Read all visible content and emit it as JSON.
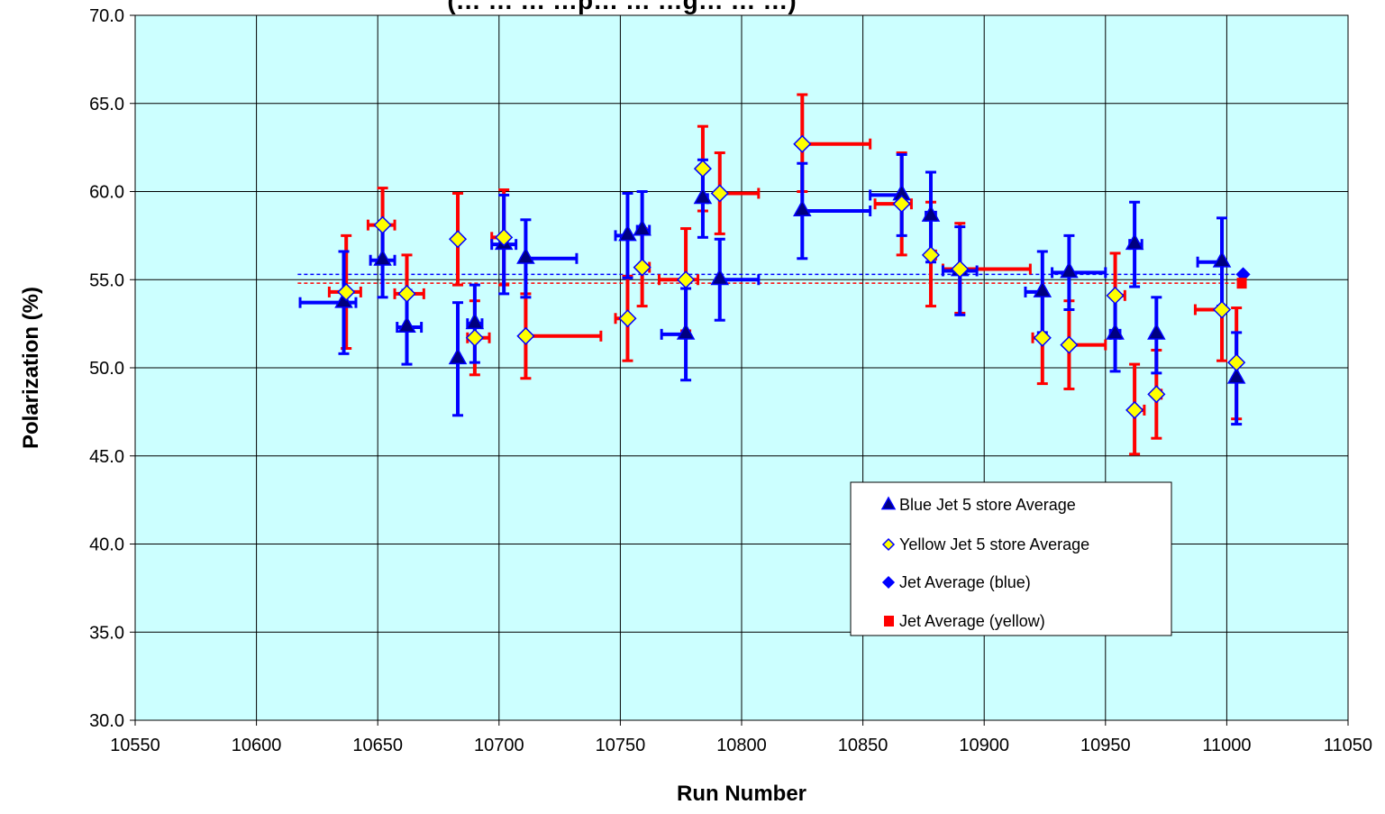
{
  "chart_data": {
    "type": "scatter",
    "title": "(… … … …p… … …g… … …)",
    "xlabel": "Run Number",
    "ylabel": "Polarization (%)",
    "xlim": [
      10550,
      11050
    ],
    "ylim": [
      30.0,
      70.0
    ],
    "x_ticks": [
      "10550",
      "10600",
      "10650",
      "10700",
      "10750",
      "10800",
      "10850",
      "10900",
      "10950",
      "11000",
      "11050"
    ],
    "y_ticks": [
      "30.0",
      "35.0",
      "40.0",
      "45.0",
      "50.0",
      "55.0",
      "60.0",
      "65.0",
      "70.0"
    ],
    "grid": true,
    "plot_background": "#ccffff",
    "legend_position": "lower-right",
    "colors": {
      "blue": "#0000ff",
      "red": "#ff0000",
      "marker_blue_fill": "#000080",
      "marker_yellow_fill": "#ffff00"
    },
    "series": [
      {
        "name": "Blue Jet 5 store Average",
        "marker": "triangle",
        "color": "#0000ff",
        "points": [
          {
            "x": 10636,
            "y": 53.7,
            "xerr": [
              10618,
              10641
            ],
            "yerr": [
              50.8,
              56.6
            ]
          },
          {
            "x": 10652,
            "y": 56.1,
            "xerr": [
              10647,
              10657
            ],
            "yerr": [
              54.0,
              58.2
            ]
          },
          {
            "x": 10662,
            "y": 52.3,
            "xerr": [
              10658,
              10668
            ],
            "yerr": [
              50.2,
              54.4
            ]
          },
          {
            "x": 10683,
            "y": 50.5,
            "xerr": [
              10683,
              10683
            ],
            "yerr": [
              47.3,
              53.7
            ]
          },
          {
            "x": 10690,
            "y": 52.5,
            "xerr": [
              10687,
              10693
            ],
            "yerr": [
              50.3,
              54.7
            ]
          },
          {
            "x": 10702,
            "y": 57.0,
            "xerr": [
              10697,
              10707
            ],
            "yerr": [
              54.2,
              59.8
            ]
          },
          {
            "x": 10711,
            "y": 56.2,
            "xerr": [
              10711,
              10732
            ],
            "yerr": [
              54.0,
              58.4
            ]
          },
          {
            "x": 10753,
            "y": 57.5,
            "xerr": [
              10748,
              10753
            ],
            "yerr": [
              55.1,
              59.9
            ]
          },
          {
            "x": 10759,
            "y": 57.8,
            "xerr": [
              10757,
              10762
            ],
            "yerr": [
              55.6,
              60.0
            ]
          },
          {
            "x": 10777,
            "y": 51.9,
            "xerr": [
              10767,
              10777
            ],
            "yerr": [
              49.3,
              54.5
            ]
          },
          {
            "x": 10784,
            "y": 59.6,
            "xerr": [
              10784,
              10786
            ],
            "yerr": [
              57.4,
              61.8
            ]
          },
          {
            "x": 10791,
            "y": 55.0,
            "xerr": [
              10791,
              10807
            ],
            "yerr": [
              52.7,
              57.3
            ]
          },
          {
            "x": 10825,
            "y": 58.9,
            "xerr": [
              10825,
              10853
            ],
            "yerr": [
              56.2,
              61.6
            ]
          },
          {
            "x": 10866,
            "y": 59.8,
            "xerr": [
              10853,
              10866
            ],
            "yerr": [
              57.5,
              62.1
            ]
          },
          {
            "x": 10878,
            "y": 58.6,
            "xerr": [
              10876,
              10880
            ],
            "yerr": [
              56.0,
              61.1
            ]
          },
          {
            "x": 10890,
            "y": 55.5,
            "xerr": [
              10883,
              10897
            ],
            "yerr": [
              53.0,
              58.0
            ]
          },
          {
            "x": 10924,
            "y": 54.3,
            "xerr": [
              10917,
              10924
            ],
            "yerr": [
              52.0,
              56.6
            ]
          },
          {
            "x": 10935,
            "y": 55.4,
            "xerr": [
              10928,
              10950
            ],
            "yerr": [
              53.3,
              57.5
            ]
          },
          {
            "x": 10954,
            "y": 51.9,
            "xerr": [
              10952,
              10956
            ],
            "yerr": [
              49.8,
              54.0
            ]
          },
          {
            "x": 10962,
            "y": 57.0,
            "xerr": [
              10960,
              10965
            ],
            "yerr": [
              54.6,
              59.4
            ]
          },
          {
            "x": 10971,
            "y": 51.9,
            "xerr": [
              10971,
              10971
            ],
            "yerr": [
              49.7,
              54.0
            ]
          },
          {
            "x": 10998,
            "y": 56.0,
            "xerr": [
              10988,
              10998
            ],
            "yerr": [
              53.5,
              58.5
            ]
          },
          {
            "x": 11004,
            "y": 49.4,
            "xerr": [
              11004,
              11004
            ],
            "yerr": [
              46.8,
              52.0
            ]
          }
        ]
      },
      {
        "name": "Yellow Jet 5 store Average",
        "marker": "diamond",
        "color": "#ff0000",
        "points": [
          {
            "x": 10637,
            "y": 54.3,
            "xerr": [
              10630,
              10643
            ],
            "yerr": [
              51.1,
              57.5
            ]
          },
          {
            "x": 10652,
            "y": 58.1,
            "xerr": [
              10646,
              10657
            ],
            "yerr": [
              56.0,
              60.2
            ]
          },
          {
            "x": 10662,
            "y": 54.2,
            "xerr": [
              10657,
              10669
            ],
            "yerr": [
              52.1,
              56.4
            ]
          },
          {
            "x": 10683,
            "y": 57.3,
            "xerr": [
              10683,
              10683
            ],
            "yerr": [
              54.7,
              59.9
            ]
          },
          {
            "x": 10690,
            "y": 51.7,
            "xerr": [
              10687,
              10696
            ],
            "yerr": [
              49.6,
              53.8
            ]
          },
          {
            "x": 10702,
            "y": 57.4,
            "xerr": [
              10697,
              10703
            ],
            "yerr": [
              54.7,
              60.1
            ]
          },
          {
            "x": 10711,
            "y": 51.8,
            "xerr": [
              10711,
              10742
            ],
            "yerr": [
              49.4,
              54.2
            ]
          },
          {
            "x": 10753,
            "y": 52.8,
            "xerr": [
              10748,
              10753
            ],
            "yerr": [
              50.4,
              55.2
            ]
          },
          {
            "x": 10759,
            "y": 55.7,
            "xerr": [
              10759,
              10762
            ],
            "yerr": [
              53.5,
              57.9
            ]
          },
          {
            "x": 10777,
            "y": 55.0,
            "xerr": [
              10766,
              10782
            ],
            "yerr": [
              52.1,
              57.9
            ]
          },
          {
            "x": 10784,
            "y": 61.3,
            "xerr": [
              10784,
              10784
            ],
            "yerr": [
              58.9,
              63.7
            ]
          },
          {
            "x": 10791,
            "y": 59.9,
            "xerr": [
              10791,
              10807
            ],
            "yerr": [
              57.6,
              62.2
            ]
          },
          {
            "x": 10825,
            "y": 62.7,
            "xerr": [
              10825,
              10853
            ],
            "yerr": [
              60.0,
              65.5
            ]
          },
          {
            "x": 10866,
            "y": 59.3,
            "xerr": [
              10855,
              10870
            ],
            "yerr": [
              56.4,
              62.2
            ]
          },
          {
            "x": 10878,
            "y": 56.4,
            "xerr": [
              10878,
              10880
            ],
            "yerr": [
              53.5,
              59.4
            ]
          },
          {
            "x": 10890,
            "y": 55.6,
            "xerr": [
              10883,
              10919
            ],
            "yerr": [
              53.1,
              58.2
            ]
          },
          {
            "x": 10924,
            "y": 51.7,
            "xerr": [
              10920,
              10924
            ],
            "yerr": [
              49.1,
              54.3
            ]
          },
          {
            "x": 10935,
            "y": 51.3,
            "xerr": [
              10935,
              10950
            ],
            "yerr": [
              48.8,
              53.8
            ]
          },
          {
            "x": 10954,
            "y": 54.1,
            "xerr": [
              10954,
              10958
            ],
            "yerr": [
              51.7,
              56.5
            ]
          },
          {
            "x": 10962,
            "y": 47.6,
            "xerr": [
              10962,
              10966
            ],
            "yerr": [
              45.1,
              50.2
            ]
          },
          {
            "x": 10971,
            "y": 48.5,
            "xerr": [
              10971,
              10973
            ],
            "yerr": [
              46.0,
              51.0
            ]
          },
          {
            "x": 10998,
            "y": 53.3,
            "xerr": [
              10987,
              10998
            ],
            "yerr": [
              50.4,
              56.0
            ]
          },
          {
            "x": 11004,
            "y": 50.3,
            "xerr": [
              11004,
              11004
            ],
            "yerr": [
              47.1,
              53.4
            ]
          }
        ]
      },
      {
        "name": "Jet Average (blue)",
        "marker": "diamond",
        "color": "#0000ff",
        "line": {
          "x": [
            10617,
            11006
          ],
          "y": 55.3
        }
      },
      {
        "name": "Jet Average (yellow)",
        "marker": "square",
        "color": "#ff0000",
        "line": {
          "x": [
            10617,
            11006
          ],
          "y": 54.8
        }
      }
    ]
  }
}
